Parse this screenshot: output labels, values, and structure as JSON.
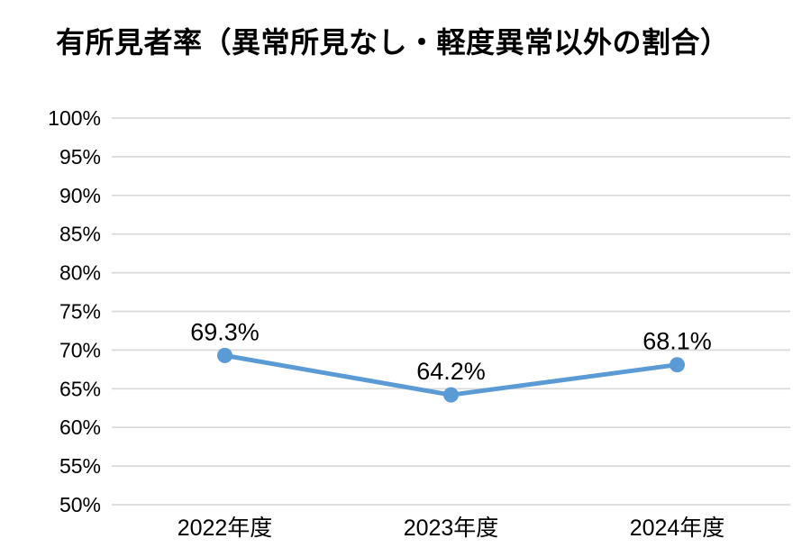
{
  "chart_data": {
    "type": "line",
    "title": "有所見者率（異常所見なし・軽度異常以外の割合）",
    "categories": [
      "2022年度",
      "2023年度",
      "2024年度"
    ],
    "series": [
      {
        "name": "有所見者率",
        "values": [
          69.3,
          64.2,
          68.1
        ],
        "data_labels": [
          "69.3%",
          "64.2%",
          "68.1%"
        ]
      }
    ],
    "xlabel": "",
    "ylabel": "",
    "ylim": [
      50,
      100
    ],
    "ytick_step": 5,
    "ytick_labels": [
      "100%",
      "95%",
      "90%",
      "85%",
      "80%",
      "75%",
      "70%",
      "65%",
      "60%",
      "55%",
      "50%"
    ],
    "grid": true,
    "legend": "none",
    "colors": {
      "line": "#5B9BD5",
      "marker": "#5B9BD5",
      "gridline": "#D9D9D9",
      "text": "#000000",
      "background": "#FFFFFF"
    }
  }
}
